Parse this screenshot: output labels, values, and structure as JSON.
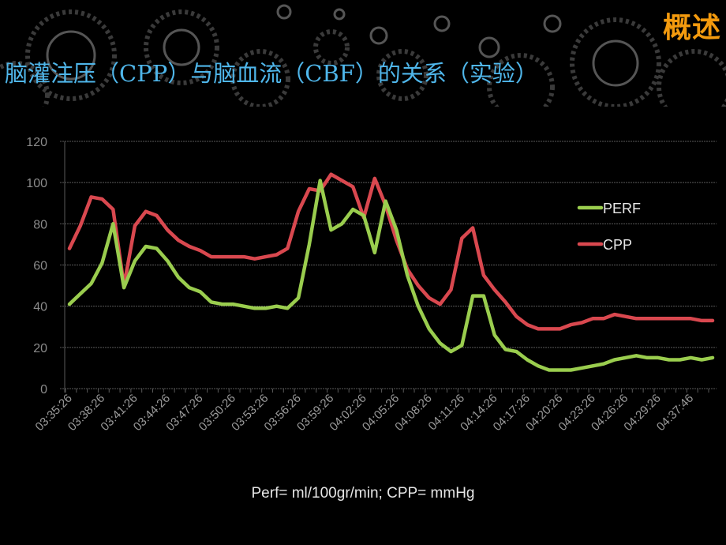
{
  "header": {
    "tag": "概述",
    "title": "脑灌注压（CPP）与脑血流（CBF）的关系（实验）",
    "tag_color": "#f39a0e",
    "title_color": "#4fb6ea"
  },
  "footnote": "Perf= ml/100gr/min; CPP= mmHg",
  "chart_data": {
    "type": "line",
    "title": "",
    "xlabel": "",
    "ylabel": "",
    "ylim": [
      0,
      120
    ],
    "yticks": [
      0,
      20,
      40,
      60,
      80,
      100,
      120
    ],
    "grid": true,
    "legend_position": "upper right (inside)",
    "x_tick_labels": [
      "03:35:26",
      "03:38:26",
      "03:41:26",
      "03:44:26",
      "03:47:26",
      "03:50:26",
      "03:53:26",
      "03:56:26",
      "03:59:26",
      "04:02:26",
      "04:05:26",
      "04:08:26",
      "04:11:26",
      "04:14:26",
      "04:17:26",
      "04:20:26",
      "04:23:26",
      "04:26:26",
      "04:29:26",
      "04:37:46"
    ],
    "x_label_every": 3,
    "series": [
      {
        "name": "PERF",
        "color": "#9acd4e",
        "values": [
          41,
          46,
          51,
          61,
          80,
          49,
          62,
          69,
          68,
          62,
          54,
          49,
          47,
          42,
          41,
          41,
          40,
          39,
          39,
          40,
          39,
          44,
          70,
          101,
          77,
          80,
          87,
          84,
          66,
          91,
          77,
          55,
          40,
          29,
          22,
          18,
          21,
          45,
          45,
          26,
          19,
          18,
          14,
          11,
          9,
          9,
          9,
          10,
          11,
          12,
          14,
          15,
          16,
          15,
          15,
          14,
          14,
          15,
          14,
          15
        ]
      },
      {
        "name": "CPP",
        "color": "#d9484f",
        "values": [
          68,
          79,
          93,
          92,
          87,
          50,
          79,
          86,
          84,
          77,
          72,
          69,
          67,
          64,
          64,
          64,
          64,
          63,
          64,
          65,
          68,
          86,
          97,
          96,
          104,
          101,
          98,
          83,
          102,
          89,
          72,
          58,
          50,
          44,
          41,
          48,
          73,
          78,
          55,
          48,
          42,
          35,
          31,
          29,
          29,
          29,
          31,
          32,
          34,
          34,
          36,
          35,
          34,
          34,
          34,
          34,
          34,
          34,
          33,
          33
        ]
      }
    ]
  }
}
